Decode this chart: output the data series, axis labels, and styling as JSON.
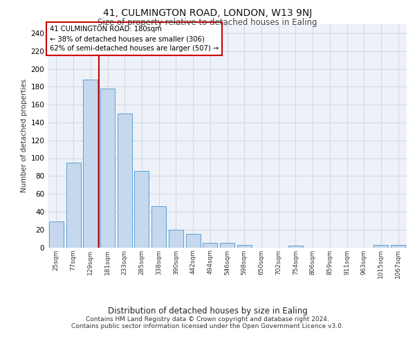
{
  "title1": "41, CULMINGTON ROAD, LONDON, W13 9NJ",
  "title2": "Size of property relative to detached houses in Ealing",
  "xlabel": "Distribution of detached houses by size in Ealing",
  "ylabel": "Number of detached properties",
  "footnote1": "Contains HM Land Registry data © Crown copyright and database right 2024.",
  "footnote2": "Contains public sector information licensed under the Open Government Licence v3.0.",
  "annotation_line1": "41 CULMINGTON ROAD: 180sqm",
  "annotation_line2": "← 38% of detached houses are smaller (306)",
  "annotation_line3": "62% of semi-detached houses are larger (507) →",
  "categories": [
    "25sqm",
    "77sqm",
    "129sqm",
    "181sqm",
    "233sqm",
    "285sqm",
    "338sqm",
    "390sqm",
    "442sqm",
    "494sqm",
    "546sqm",
    "598sqm",
    "650sqm",
    "702sqm",
    "754sqm",
    "806sqm",
    "859sqm",
    "911sqm",
    "963sqm",
    "1015sqm",
    "1067sqm"
  ],
  "values": [
    29,
    95,
    188,
    178,
    150,
    86,
    46,
    20,
    15,
    5,
    5,
    3,
    0,
    0,
    2,
    0,
    0,
    0,
    0,
    3,
    3
  ],
  "bar_color": "#c5d8ed",
  "bar_edge_color": "#5a9fd4",
  "grid_color": "#d0d8e8",
  "background_color": "#eef2f8",
  "red_line_color": "#cc0000",
  "annotation_box_color": "#cc0000",
  "ylim": [
    0,
    250
  ],
  "yticks": [
    0,
    20,
    40,
    60,
    80,
    100,
    120,
    140,
    160,
    180,
    200,
    220,
    240
  ]
}
